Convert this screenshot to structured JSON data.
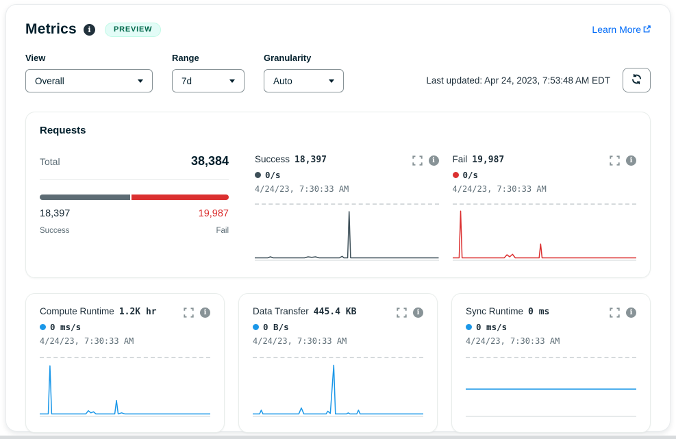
{
  "header": {
    "title": "Metrics",
    "badge": "PREVIEW",
    "learn_more": "Learn More"
  },
  "controls": {
    "view_label": "View",
    "view_value": "Overall",
    "range_label": "Range",
    "range_value": "7d",
    "granularity_label": "Granularity",
    "granularity_value": "Auto",
    "last_updated": "Last updated: Apr 24, 2023, 7:53:48 AM EDT"
  },
  "requests": {
    "title": "Requests",
    "total_label": "Total",
    "total_value": "38,384",
    "success_value": "18,397",
    "fail_value": "19,987",
    "success_label": "Success",
    "fail_label": "Fail",
    "success_pct": 47.9,
    "success_color": "#5D6C74",
    "fail_color": "#DB3030"
  },
  "chart_data": [
    {
      "type": "line",
      "title": "Success",
      "value": "18,397",
      "rate": "0/s",
      "timestamp": "4/24/23, 7:30:33 AM",
      "color": "#3D4F58",
      "x_range": "7d",
      "ylim": [
        0,
        100
      ],
      "grid": "top dashed max line",
      "points": [
        [
          0,
          2
        ],
        [
          7,
          2
        ],
        [
          8.5,
          4
        ],
        [
          10,
          2
        ],
        [
          27,
          2
        ],
        [
          29,
          4
        ],
        [
          31,
          3
        ],
        [
          33,
          4
        ],
        [
          35,
          2
        ],
        [
          46,
          2
        ],
        [
          47.5,
          5
        ],
        [
          48.5,
          2
        ],
        [
          50.5,
          2
        ],
        [
          51.3,
          92
        ],
        [
          52.1,
          2
        ],
        [
          60,
          2
        ],
        [
          100,
          2
        ]
      ]
    },
    {
      "type": "line",
      "title": "Fail",
      "value": "19,987",
      "rate": "0/s",
      "timestamp": "4/24/23, 7:30:33 AM",
      "color": "#DB3030",
      "x_range": "7d",
      "ylim": [
        0,
        100
      ],
      "grid": "top dashed max line",
      "points": [
        [
          0,
          2
        ],
        [
          3.5,
          2
        ],
        [
          4.3,
          93
        ],
        [
          5.1,
          2
        ],
        [
          28,
          2
        ],
        [
          29.5,
          8
        ],
        [
          31,
          4
        ],
        [
          32.5,
          9
        ],
        [
          34,
          2
        ],
        [
          47,
          2
        ],
        [
          47.8,
          29
        ],
        [
          48.6,
          2
        ],
        [
          100,
          2
        ]
      ]
    },
    {
      "type": "line",
      "title": "Compute Runtime",
      "value": "1.2K hr",
      "rate": "0 ms/s",
      "timestamp": "4/24/23, 7:30:33 AM",
      "color": "#1A97E8",
      "x_range": "7d",
      "ylim": [
        0,
        100
      ],
      "grid": "top dashed max line",
      "points": [
        [
          0,
          2
        ],
        [
          5,
          2
        ],
        [
          6,
          91
        ],
        [
          7,
          2
        ],
        [
          27,
          2
        ],
        [
          28.5,
          8
        ],
        [
          30,
          4
        ],
        [
          31.5,
          6
        ],
        [
          33,
          2
        ],
        [
          44,
          2
        ],
        [
          45,
          27
        ],
        [
          46,
          2
        ],
        [
          48,
          4
        ],
        [
          50,
          2
        ],
        [
          100,
          2
        ]
      ]
    },
    {
      "type": "line",
      "title": "Data Transfer",
      "value": "445.4 KB",
      "rate": "0 B/s",
      "timestamp": "4/24/23, 7:30:33 AM",
      "color": "#1A97E8",
      "x_range": "7d",
      "ylim": [
        0,
        100
      ],
      "grid": "top dashed max line",
      "points": [
        [
          0,
          2
        ],
        [
          4,
          2
        ],
        [
          5,
          9
        ],
        [
          6,
          2
        ],
        [
          27,
          2
        ],
        [
          28.5,
          13
        ],
        [
          30,
          2
        ],
        [
          43,
          2
        ],
        [
          44,
          7
        ],
        [
          45.5,
          3
        ],
        [
          47.5,
          92
        ],
        [
          48.5,
          2
        ],
        [
          55,
          2
        ],
        [
          56,
          4
        ],
        [
          57,
          2
        ],
        [
          61,
          2
        ],
        [
          62,
          9
        ],
        [
          63,
          2
        ],
        [
          100,
          2
        ]
      ]
    },
    {
      "type": "line",
      "title": "Sync Runtime",
      "value": "0 ms",
      "rate": "0 ms/s",
      "timestamp": "4/24/23, 7:30:33 AM",
      "color": "#1A97E8",
      "x_range": "7d",
      "ylim": [
        0,
        100
      ],
      "grid": "top dashed max line",
      "points": [
        [
          0,
          48
        ],
        [
          100,
          48
        ]
      ]
    }
  ]
}
